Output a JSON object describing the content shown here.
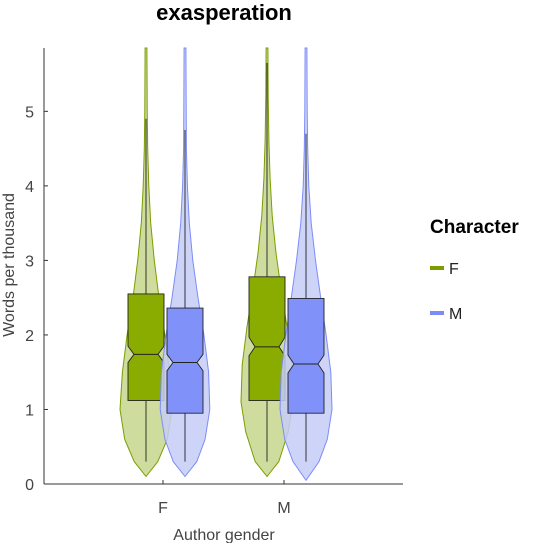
{
  "chart_data": {
    "type": "violin-box",
    "title": "exasperation",
    "xlabel": "Author gender",
    "ylabel": "Words per thousand",
    "categories": [
      "F",
      "M"
    ],
    "ylim": [
      0,
      5.85
    ],
    "yticks": [
      0,
      1,
      2,
      3,
      4,
      5
    ],
    "legend": {
      "title": "Character",
      "placement": "right"
    },
    "series": [
      {
        "name": "F",
        "color": "#7a9e00",
        "box_fill": "#8aab00",
        "violin_fill": "#c6d68c",
        "groups": [
          {
            "category": "F",
            "q1": 1.12,
            "median": 1.74,
            "q3": 2.55,
            "notch_low": 1.63,
            "notch_high": 1.85,
            "whisker_low": 0.3,
            "whisker_high": 4.9,
            "violin": [
              [
                0.1,
                0.0
              ],
              [
                0.3,
                0.5
              ],
              [
                0.6,
                0.9
              ],
              [
                1.0,
                1.1
              ],
              [
                1.5,
                1.0
              ],
              [
                2.0,
                0.8
              ],
              [
                2.5,
                0.55
              ],
              [
                3.0,
                0.35
              ],
              [
                3.5,
                0.2
              ],
              [
                4.0,
                0.12
              ],
              [
                4.5,
                0.07
              ],
              [
                5.0,
                0.05
              ],
              [
                5.85,
                0.04
              ]
            ]
          },
          {
            "category": "M",
            "q1": 1.12,
            "median": 1.84,
            "q3": 2.78,
            "notch_low": 1.72,
            "notch_high": 1.97,
            "whisker_low": 0.3,
            "whisker_high": 5.65,
            "violin": [
              [
                0.1,
                0.0
              ],
              [
                0.3,
                0.5
              ],
              [
                0.7,
                0.9
              ],
              [
                1.1,
                1.1
              ],
              [
                1.6,
                1.05
              ],
              [
                2.1,
                0.85
              ],
              [
                2.6,
                0.6
              ],
              [
                3.1,
                0.38
              ],
              [
                3.6,
                0.22
              ],
              [
                4.1,
                0.13
              ],
              [
                4.6,
                0.08
              ],
              [
                5.2,
                0.05
              ],
              [
                5.85,
                0.04
              ]
            ]
          }
        ]
      },
      {
        "name": "M",
        "color": "#7b8cf7",
        "box_fill": "#8191fa",
        "violin_fill": "#c6ccf7",
        "groups": [
          {
            "category": "F",
            "q1": 0.95,
            "median": 1.63,
            "q3": 2.36,
            "notch_low": 1.52,
            "notch_high": 1.74,
            "whisker_low": 0.3,
            "whisker_high": 4.75,
            "violin": [
              [
                0.1,
                0.0
              ],
              [
                0.3,
                0.5
              ],
              [
                0.6,
                0.85
              ],
              [
                1.0,
                1.05
              ],
              [
                1.5,
                1.0
              ],
              [
                2.0,
                0.8
              ],
              [
                2.5,
                0.55
              ],
              [
                3.0,
                0.33
              ],
              [
                3.5,
                0.18
              ],
              [
                4.0,
                0.1
              ],
              [
                4.5,
                0.06
              ],
              [
                5.0,
                0.05
              ],
              [
                5.85,
                0.04
              ]
            ]
          },
          {
            "category": "M",
            "q1": 0.95,
            "median": 1.61,
            "q3": 2.49,
            "notch_low": 1.49,
            "notch_high": 1.73,
            "whisker_low": 0.3,
            "whisker_high": 4.7,
            "violin": [
              [
                0.05,
                0.0
              ],
              [
                0.3,
                0.55
              ],
              [
                0.6,
                0.9
              ],
              [
                1.0,
                1.1
              ],
              [
                1.5,
                1.05
              ],
              [
                2.0,
                0.85
              ],
              [
                2.5,
                0.62
              ],
              [
                3.0,
                0.4
              ],
              [
                3.5,
                0.22
              ],
              [
                4.0,
                0.12
              ],
              [
                4.5,
                0.07
              ],
              [
                5.0,
                0.05
              ],
              [
                5.85,
                0.04
              ]
            ]
          }
        ]
      }
    ]
  }
}
